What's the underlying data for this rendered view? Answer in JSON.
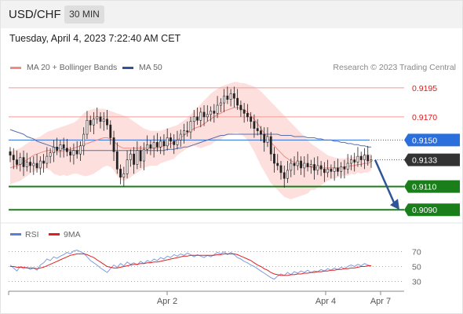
{
  "header": {
    "symbol": "USD/CHF",
    "interval": "30 MIN"
  },
  "datetime": "Tuesday, April 4, 2023 7:22:40 AM CET",
  "legend": {
    "ma20": {
      "label": "MA 20 + Bollinger Bands",
      "color": "#f08a82"
    },
    "ma50": {
      "label": "MA 50",
      "color": "#2f5597"
    }
  },
  "copyright": "Research © 2023 Trading Central",
  "rsi_legend": {
    "rsi": {
      "label": "RSI",
      "color": "#5b7fd6"
    },
    "ma9": {
      "label": "9MA",
      "color": "#e02020"
    }
  },
  "chart_data": [
    {
      "type": "candlestick",
      "title": "USD/CHF",
      "ylim": [
        0.908,
        0.9203
      ],
      "x_ticks": [
        "Apr 2",
        "Apr 4",
        "Apr 7"
      ],
      "levels": [
        {
          "value": 0.9195,
          "label": "0.9195",
          "style": "resistance",
          "color": "#e53935"
        },
        {
          "value": 0.917,
          "label": "0.9170",
          "style": "resistance",
          "color": "#e53935"
        },
        {
          "value": 0.915,
          "label": "0.9150",
          "style": "pivot",
          "color": "#2a6fdb"
        },
        {
          "value": 0.9133,
          "label": "0.9133",
          "style": "last",
          "color": "#333333"
        },
        {
          "value": 0.911,
          "label": "0.9110",
          "style": "support",
          "color": "#1a7f1a"
        },
        {
          "value": 0.909,
          "label": "0.9090",
          "style": "support",
          "color": "#1a7f1a"
        }
      ],
      "close": [
        0.9137,
        0.9133,
        0.9129,
        0.9135,
        0.9127,
        0.9131,
        0.9128,
        0.913,
        0.9126,
        0.9132,
        0.913,
        0.9136,
        0.9139,
        0.9144,
        0.9141,
        0.9146,
        0.9143,
        0.914,
        0.9137,
        0.9141,
        0.9138,
        0.9145,
        0.9155,
        0.9167,
        0.9163,
        0.9168,
        0.917,
        0.9166,
        0.9168,
        0.9163,
        0.9152,
        0.914,
        0.9125,
        0.9118,
        0.9121,
        0.9133,
        0.9138,
        0.9129,
        0.9141,
        0.9132,
        0.9142,
        0.9146,
        0.9143,
        0.9148,
        0.9144,
        0.9149,
        0.9145,
        0.9152,
        0.9149,
        0.9146,
        0.915,
        0.9155,
        0.9158,
        0.9157,
        0.9166,
        0.917,
        0.9167,
        0.9174,
        0.917,
        0.9172,
        0.9175,
        0.9173,
        0.918,
        0.9182,
        0.9188,
        0.9185,
        0.919,
        0.9186,
        0.918,
        0.9176,
        0.9173,
        0.917,
        0.9166,
        0.916,
        0.9158,
        0.9155,
        0.9148,
        0.9153,
        0.9138,
        0.913,
        0.9128,
        0.9122,
        0.9117,
        0.9124,
        0.913,
        0.9128,
        0.9132,
        0.9126,
        0.913,
        0.9127,
        0.9129,
        0.9124,
        0.9128,
        0.9125,
        0.9122,
        0.9125,
        0.9123,
        0.9126,
        0.9123,
        0.9127,
        0.9125,
        0.913,
        0.9133,
        0.9131,
        0.9136,
        0.9133,
        0.9137,
        0.9132,
        0.9133
      ],
      "ma20": [
        0.9126,
        0.9127,
        0.9128,
        0.9129,
        0.9131,
        0.9133,
        0.9135,
        0.9137,
        0.9138,
        0.9139,
        0.914,
        0.9141,
        0.9141,
        0.914,
        0.914,
        0.914,
        0.9141,
        0.9141,
        0.9142,
        0.9143,
        0.9144,
        0.9145,
        0.9146,
        0.9147,
        0.9148,
        0.9149,
        0.915,
        0.9151,
        0.9152,
        0.9152,
        0.9151,
        0.9149,
        0.9146,
        0.9144,
        0.9143,
        0.9143,
        0.9143,
        0.9143,
        0.9143,
        0.9143,
        0.9143,
        0.9143,
        0.9143,
        0.9143,
        0.9143,
        0.9144,
        0.9145,
        0.9146,
        0.9147,
        0.9148,
        0.915,
        0.9152,
        0.9154,
        0.9156,
        0.9158,
        0.916,
        0.9161,
        0.9162,
        0.9164,
        0.9166,
        0.9168,
        0.917,
        0.9172,
        0.9173,
        0.9175,
        0.9176,
        0.9177,
        0.9178,
        0.9178,
        0.9177,
        0.9176,
        0.9174,
        0.9171,
        0.9168,
        0.9164,
        0.916,
        0.9156,
        0.9152,
        0.9148,
        0.9145,
        0.9142,
        0.9139,
        0.9136,
        0.9134,
        0.9132,
        0.9131,
        0.913,
        0.9129,
        0.9128,
        0.9127,
        0.9127,
        0.9126,
        0.9126,
        0.9126,
        0.9126,
        0.9126,
        0.9126,
        0.9126,
        0.9126,
        0.9126,
        0.9127,
        0.9127,
        0.9128,
        0.9128,
        0.9129,
        0.9129,
        0.913,
        0.913,
        0.9131
      ],
      "boll_upper": [
        0.914,
        0.9141,
        0.9142,
        0.9143,
        0.9145,
        0.9147,
        0.9149,
        0.9151,
        0.9152,
        0.9153,
        0.9155,
        0.9157,
        0.9158,
        0.9159,
        0.916,
        0.9161,
        0.9162,
        0.9163,
        0.9164,
        0.9165,
        0.9167,
        0.917,
        0.9173,
        0.9175,
        0.9176,
        0.9177,
        0.9177,
        0.9177,
        0.9177,
        0.9176,
        0.9175,
        0.9174,
        0.9173,
        0.9172,
        0.9171,
        0.917,
        0.9168,
        0.9166,
        0.9164,
        0.9162,
        0.916,
        0.9159,
        0.9158,
        0.9158,
        0.9158,
        0.9158,
        0.9159,
        0.916,
        0.9161,
        0.9162,
        0.9163,
        0.9165,
        0.9167,
        0.9169,
        0.9172,
        0.9175,
        0.9178,
        0.9181,
        0.9184,
        0.9187,
        0.919,
        0.9192,
        0.9194,
        0.9196,
        0.9197,
        0.9198,
        0.9199,
        0.92,
        0.92,
        0.9199,
        0.9199,
        0.9198,
        0.9197,
        0.9196,
        0.9194,
        0.9192,
        0.9189,
        0.9186,
        0.9183,
        0.918,
        0.9177,
        0.9174,
        0.9171,
        0.9168,
        0.9165,
        0.9162,
        0.9159,
        0.9156,
        0.9153,
        0.915,
        0.9147,
        0.9145,
        0.9143,
        0.9141,
        0.9139,
        0.9137,
        0.9136,
        0.9135,
        0.9134,
        0.9134,
        0.9134,
        0.9135,
        0.9135,
        0.9136,
        0.9136,
        0.9137,
        0.9138,
        0.9138,
        0.9138
      ],
      "boll_lower": [
        0.9112,
        0.9113,
        0.9114,
        0.9115,
        0.9117,
        0.9119,
        0.9121,
        0.9123,
        0.9124,
        0.9125,
        0.9125,
        0.9125,
        0.9124,
        0.9121,
        0.912,
        0.9119,
        0.912,
        0.9119,
        0.912,
        0.9121,
        0.9121,
        0.912,
        0.9119,
        0.9119,
        0.912,
        0.9121,
        0.9123,
        0.9125,
        0.9127,
        0.9128,
        0.9127,
        0.9124,
        0.9119,
        0.9116,
        0.9115,
        0.9116,
        0.9118,
        0.912,
        0.9122,
        0.9124,
        0.9126,
        0.9127,
        0.9128,
        0.9128,
        0.9128,
        0.913,
        0.9131,
        0.9132,
        0.9133,
        0.9134,
        0.9137,
        0.9139,
        0.9141,
        0.9143,
        0.9144,
        0.9145,
        0.9144,
        0.9143,
        0.9144,
        0.9145,
        0.9146,
        0.9148,
        0.915,
        0.915,
        0.9153,
        0.9154,
        0.9155,
        0.9156,
        0.9156,
        0.9155,
        0.9153,
        0.915,
        0.9145,
        0.914,
        0.9134,
        0.9128,
        0.9123,
        0.9118,
        0.9113,
        0.911,
        0.9107,
        0.9104,
        0.9101,
        0.91,
        0.9099,
        0.91,
        0.9101,
        0.9102,
        0.9103,
        0.9104,
        0.9107,
        0.9107,
        0.9109,
        0.9111,
        0.9113,
        0.9115,
        0.9116,
        0.9117,
        0.9118,
        0.9118,
        0.912,
        0.9119,
        0.9121,
        0.912,
        0.9122,
        0.9121,
        0.9122,
        0.9122,
        0.9124
      ],
      "ma50": [
        0.9159,
        0.9158,
        0.9157,
        0.9156,
        0.9155,
        0.9153,
        0.9152,
        0.9151,
        0.9149,
        0.9148,
        0.9147,
        0.9146,
        0.9145,
        0.9144,
        0.9143,
        0.9143,
        0.9142,
        0.9142,
        0.9141,
        0.9141,
        0.9141,
        0.9141,
        0.9141,
        0.9141,
        0.9141,
        0.9141,
        0.9141,
        0.9141,
        0.9141,
        0.9141,
        0.9141,
        0.9141,
        0.9141,
        0.9141,
        0.9141,
        0.9141,
        0.9141,
        0.9141,
        0.9141,
        0.9141,
        0.9141,
        0.9141,
        0.9141,
        0.9141,
        0.9141,
        0.9141,
        0.9141,
        0.9142,
        0.9142,
        0.9142,
        0.9143,
        0.9143,
        0.9144,
        0.9144,
        0.9145,
        0.9146,
        0.9147,
        0.9148,
        0.9149,
        0.915,
        0.9151,
        0.9152,
        0.9153,
        0.9154,
        0.9154,
        0.9155,
        0.9155,
        0.9155,
        0.9155,
        0.9155,
        0.9155,
        0.9155,
        0.9155,
        0.9155,
        0.9155,
        0.9155,
        0.9155,
        0.9155,
        0.9155,
        0.9155,
        0.9155,
        0.9154,
        0.9154,
        0.9154,
        0.9154,
        0.9153,
        0.9153,
        0.9153,
        0.9153,
        0.9152,
        0.9152,
        0.9152,
        0.9151,
        0.9151,
        0.915,
        0.915,
        0.915,
        0.9149,
        0.9149,
        0.9148,
        0.9148,
        0.9147,
        0.9147,
        0.9146,
        0.9146,
        0.9145,
        0.9145,
        0.9144,
        0.9144
      ],
      "forecast": [
        0.9133,
        0.909
      ]
    },
    {
      "type": "line",
      "title": "RSI",
      "ylim": [
        22,
        78
      ],
      "y_ticks": [
        "70",
        "50",
        "30"
      ],
      "rsi": [
        52,
        48,
        44,
        50,
        47,
        49,
        46,
        48,
        45,
        52,
        55,
        60,
        58,
        63,
        61,
        64,
        66,
        69,
        67,
        71,
        72,
        70,
        68,
        63,
        58,
        55,
        52,
        48,
        45,
        42,
        47,
        52,
        49,
        54,
        51,
        56,
        53,
        55,
        52,
        57,
        54,
        58,
        56,
        60,
        58,
        62,
        60,
        64,
        62,
        66,
        64,
        67,
        65,
        68,
        66,
        63,
        66,
        64,
        62,
        65,
        63,
        66,
        69,
        67,
        70,
        66,
        69,
        66,
        62,
        60,
        57,
        55,
        52,
        50,
        47,
        44,
        41,
        38,
        35,
        33,
        37,
        40,
        38,
        42,
        39,
        43,
        41,
        44,
        42,
        45,
        42,
        44,
        43,
        46,
        44,
        47,
        45,
        48,
        46,
        49,
        47,
        50,
        52,
        50,
        53,
        51,
        54,
        52,
        51
      ],
      "ma9": [
        50,
        50,
        49,
        49,
        49,
        48,
        48,
        48,
        47,
        48,
        49,
        51,
        53,
        55,
        57,
        59,
        61,
        63,
        65,
        66,
        67,
        67,
        67,
        66,
        64,
        62,
        59,
        56,
        53,
        50,
        49,
        48,
        48,
        49,
        50,
        51,
        52,
        53,
        53,
        54,
        54,
        55,
        55,
        56,
        56,
        57,
        58,
        59,
        60,
        61,
        62,
        63,
        64,
        64,
        65,
        65,
        65,
        65,
        65,
        65,
        65,
        65,
        66,
        66,
        67,
        67,
        67,
        67,
        66,
        64,
        62,
        60,
        58,
        55,
        52,
        50,
        47,
        45,
        42,
        40,
        39,
        38,
        38,
        38,
        39,
        39,
        40,
        40,
        41,
        41,
        42,
        42,
        43,
        43,
        44,
        44,
        45,
        45,
        46,
        46,
        47,
        47,
        48,
        48,
        49,
        50,
        50,
        51,
        51
      ]
    }
  ]
}
